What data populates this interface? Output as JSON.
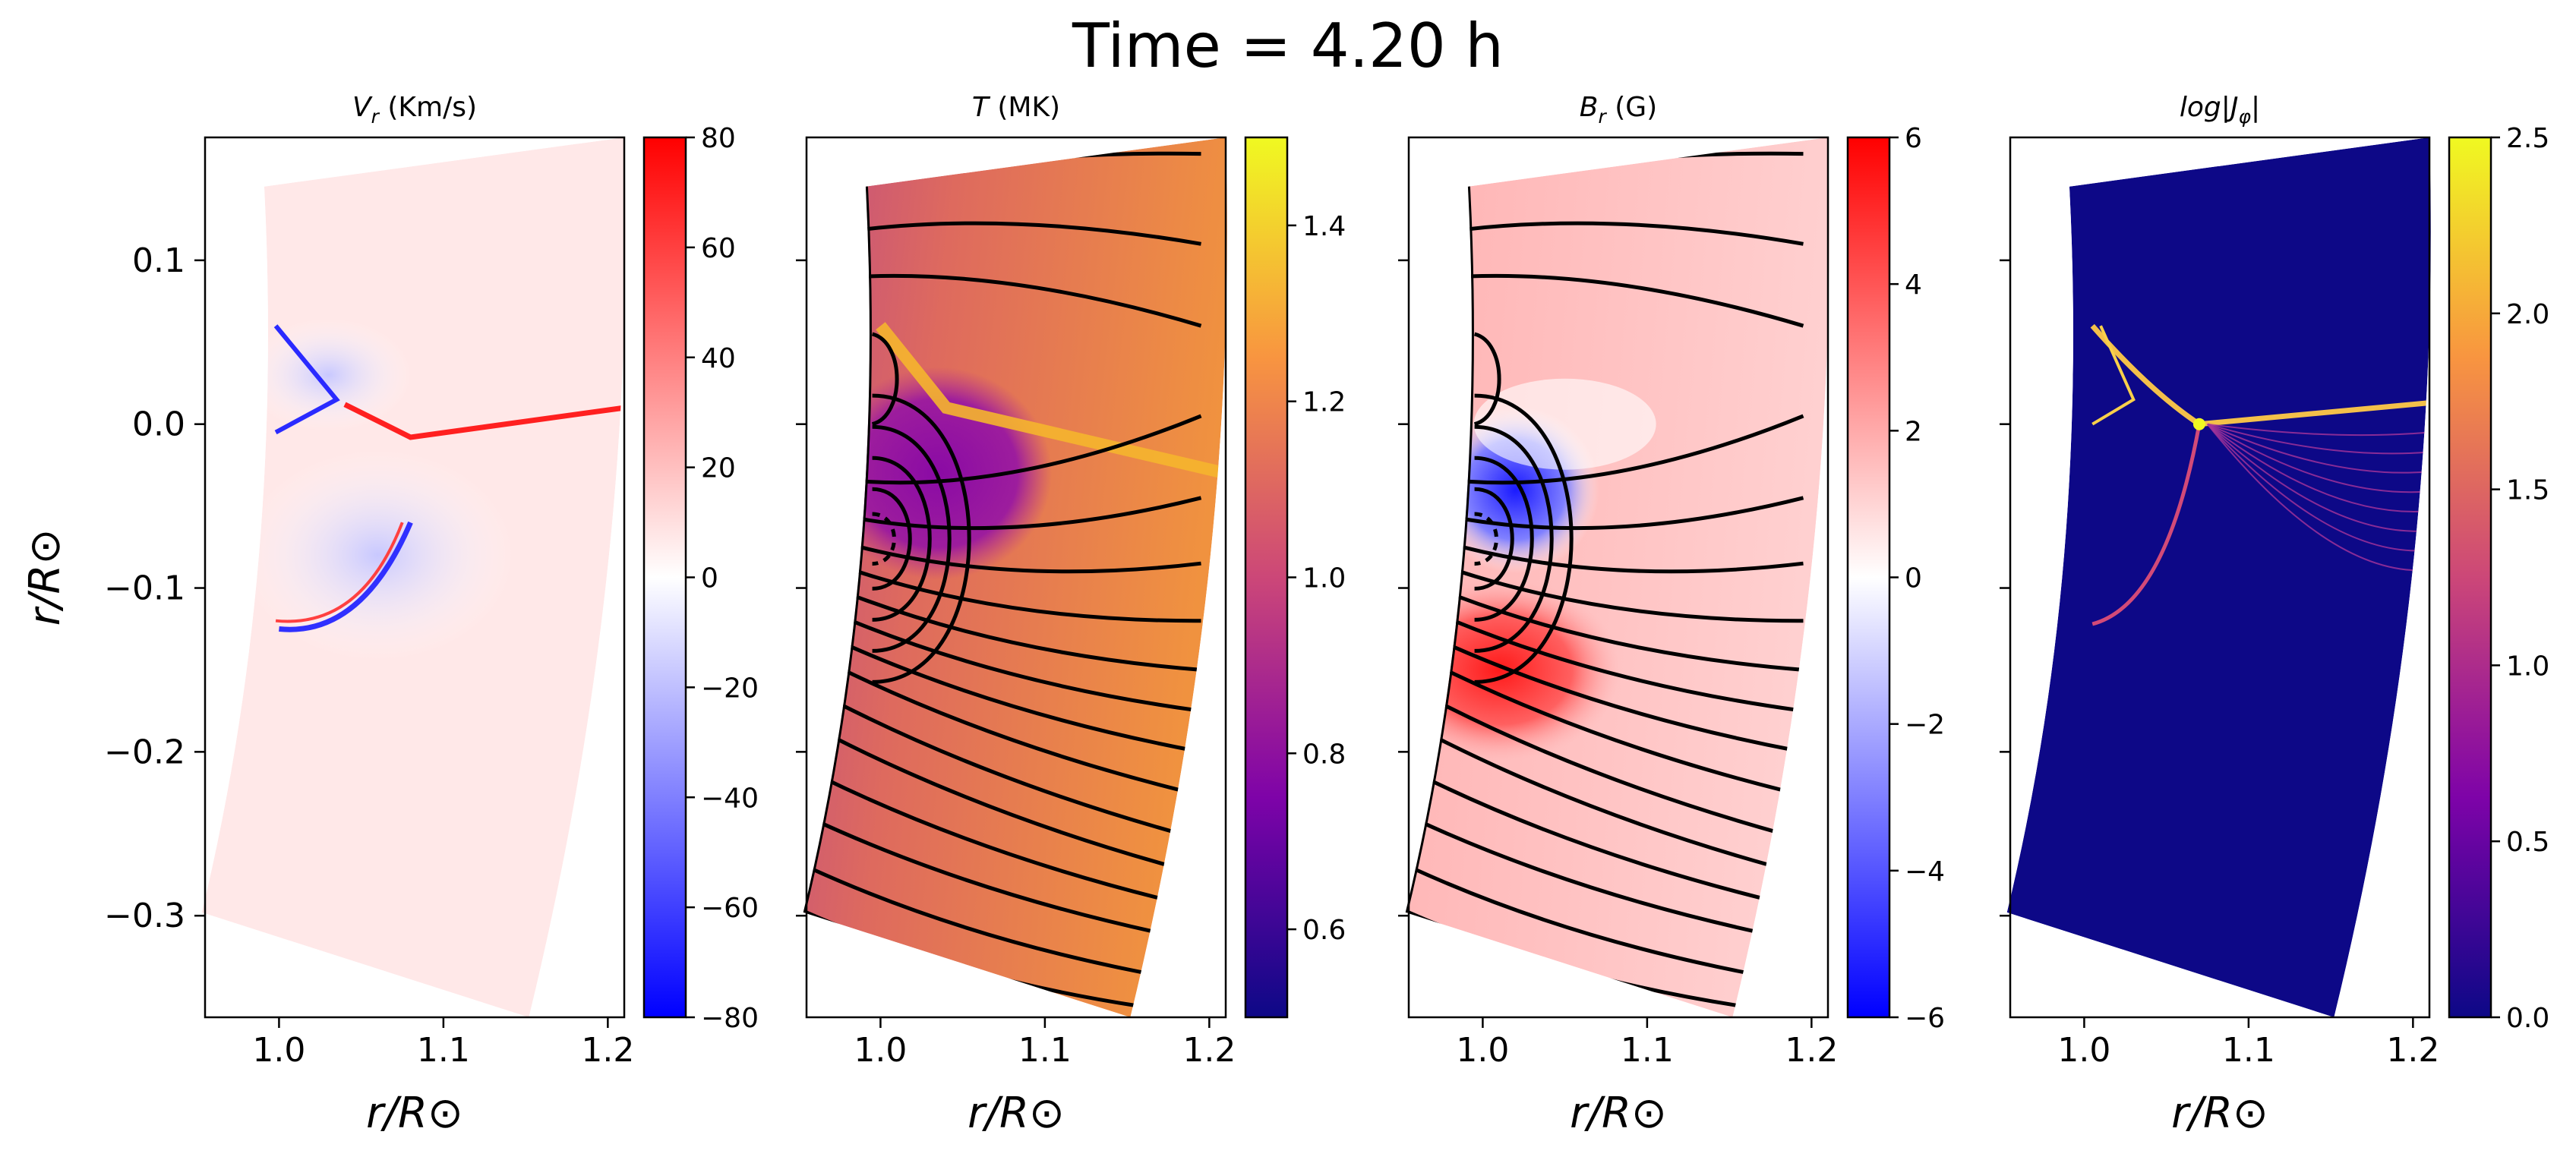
{
  "suptitle": "Time = 4.20 h",
  "colors": {
    "bwr": [
      "#0000ff",
      "#ffffff",
      "#ff0000"
    ],
    "plasma": [
      "#0d0887",
      "#7e03a8",
      "#cc4778",
      "#f89540",
      "#f0f921"
    ],
    "field_lines": "#000000"
  },
  "panels": [
    {
      "title": "V_r (Km/s)",
      "title_math": "V",
      "title_sub": "r",
      "title_unit": " (Km/s)",
      "colormap": "bwr",
      "colorbar": {
        "range": [
          -80,
          80
        ],
        "ticks": [
          "80",
          "60",
          "40",
          "20",
          "0",
          "−20",
          "−40",
          "−60",
          "−80"
        ]
      },
      "field_lines": false,
      "xlabel": "r/R⊙",
      "ylabel": "r/R⊙"
    },
    {
      "title": "T (MK)",
      "title_math": "T",
      "title_sub": "",
      "title_unit": " (MK)",
      "colormap": "plasma",
      "colorbar": {
        "range": [
          0.5,
          1.5
        ],
        "ticks": [
          "1.4",
          "1.2",
          "1.0",
          "0.8",
          "0.6"
        ]
      },
      "field_lines": true,
      "xlabel": "r/R⊙"
    },
    {
      "title": "B_r (G)",
      "title_math": "B",
      "title_sub": "r",
      "title_unit": " (G)",
      "colormap": "bwr",
      "colorbar": {
        "range": [
          -6,
          6
        ],
        "ticks": [
          "6",
          "4",
          "2",
          "0",
          "−2",
          "−4",
          "−6"
        ]
      },
      "field_lines": true,
      "xlabel": "r/R⊙"
    },
    {
      "title": "log|J_φ|",
      "title_math": "log|J",
      "title_sub": "φ",
      "title_unit": "|",
      "colormap": "plasma",
      "colorbar": {
        "range": [
          0.0,
          2.5
        ],
        "ticks": [
          "2.5",
          "2.0",
          "1.5",
          "1.0",
          "0.5",
          "0.0"
        ]
      },
      "field_lines": false,
      "xlabel": "r/R⊙"
    }
  ],
  "axes": {
    "xlim": [
      0.955,
      1.21
    ],
    "ylim": [
      -0.362,
      0.175
    ],
    "xticks": [
      "1.0",
      "1.1",
      "1.2"
    ],
    "yticks": [
      "0.1",
      "0.0",
      "−0.1",
      "−0.2",
      "−0.3"
    ]
  },
  "chart_data": [
    {
      "type": "heatmap",
      "title": "V_r (Km/s)",
      "xlabel": "r/R⊙",
      "ylabel": "r/R⊙",
      "xlim": [
        0.955,
        1.21
      ],
      "ylim": [
        -0.362,
        0.175
      ],
      "x_ticks": [
        1.0,
        1.1,
        1.2
      ],
      "y_ticks": [
        0.1,
        0.0,
        -0.1,
        -0.2,
        -0.3
      ],
      "colorbar_range": [
        -80,
        80
      ],
      "colormap": "bwr"
    },
    {
      "type": "heatmap",
      "title": "T (MK)",
      "xlabel": "r/R⊙",
      "xlim": [
        0.955,
        1.21
      ],
      "ylim": [
        -0.362,
        0.175
      ],
      "x_ticks": [
        1.0,
        1.1,
        1.2
      ],
      "colorbar_range": [
        0.5,
        1.5
      ],
      "colormap": "plasma",
      "overlay": "magnetic field lines"
    },
    {
      "type": "heatmap",
      "title": "B_r (G)",
      "xlabel": "r/R⊙",
      "xlim": [
        0.955,
        1.21
      ],
      "ylim": [
        -0.362,
        0.175
      ],
      "x_ticks": [
        1.0,
        1.1,
        1.2
      ],
      "colorbar_range": [
        -6,
        6
      ],
      "colormap": "bwr",
      "overlay": "magnetic field lines"
    },
    {
      "type": "heatmap",
      "title": "log|J_φ|",
      "xlabel": "r/R⊙",
      "xlim": [
        0.955,
        1.21
      ],
      "ylim": [
        -0.362,
        0.175
      ],
      "x_ticks": [
        1.0,
        1.1,
        1.2
      ],
      "colorbar_range": [
        0.0,
        2.5
      ],
      "colormap": "plasma"
    }
  ]
}
